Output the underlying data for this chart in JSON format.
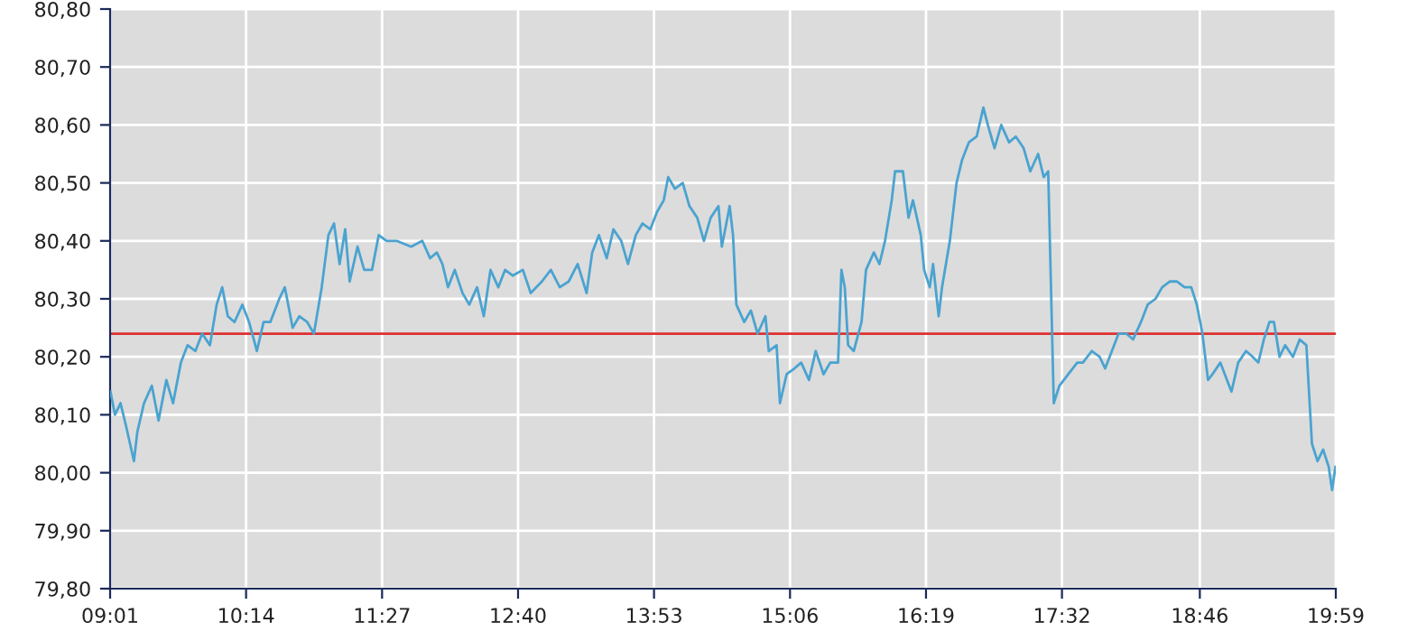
{
  "chart_data": {
    "type": "line",
    "x": [
      9.02,
      9.06,
      9.11,
      9.16,
      9.23,
      9.26,
      9.32,
      9.39,
      9.45,
      9.52,
      9.58,
      9.65,
      9.71,
      9.78,
      9.84,
      9.91,
      9.97,
      10.02,
      10.07,
      10.13,
      10.2,
      10.26,
      10.33,
      10.39,
      10.45,
      10.53,
      10.58,
      10.65,
      10.71,
      10.78,
      10.84,
      10.91,
      10.97,
      11.02,
      11.07,
      11.12,
      11.16,
      11.23,
      11.29,
      11.36,
      11.42,
      11.49,
      11.58,
      11.71,
      11.81,
      11.88,
      11.94,
      11.99,
      12.04,
      12.1,
      12.17,
      12.23,
      12.3,
      12.36,
      12.42,
      12.49,
      12.55,
      12.62,
      12.71,
      12.78,
      12.88,
      12.96,
      13.04,
      13.12,
      13.2,
      13.28,
      13.33,
      13.39,
      13.46,
      13.52,
      13.59,
      13.65,
      13.72,
      13.78,
      13.85,
      13.91,
      13.97,
      14.01,
      14.07,
      14.14,
      14.2,
      14.27,
      14.33,
      14.39,
      14.46,
      14.49,
      14.56,
      14.59,
      14.62,
      14.69,
      14.75,
      14.81,
      14.88,
      14.91,
      14.98,
      15.01,
      15.07,
      15.14,
      15.2,
      15.27,
      15.33,
      15.4,
      15.46,
      15.53,
      15.56,
      15.59,
      15.62,
      15.67,
      15.74,
      15.78,
      15.85,
      15.9,
      15.95,
      16.01,
      16.04,
      16.11,
      16.16,
      16.2,
      16.27,
      16.3,
      16.35,
      16.38,
      16.43,
      16.46,
      16.53,
      16.59,
      16.64,
      16.7,
      16.77,
      16.83,
      16.87,
      16.9,
      16.93,
      16.99,
      17.06,
      17.12,
      17.19,
      17.25,
      17.32,
      17.37,
      17.41,
      17.46,
      17.51,
      17.59,
      17.67,
      17.72,
      17.8,
      17.87,
      17.92,
      17.98,
      18.04,
      18.11,
      18.17,
      18.24,
      18.3,
      18.37,
      18.43,
      18.5,
      18.56,
      18.63,
      18.69,
      18.74,
      18.79,
      18.84,
      18.88,
      18.95,
      19.01,
      19.05,
      19.11,
      19.18,
      19.24,
      19.29,
      19.34,
      19.39,
      19.43,
      19.48,
      19.53,
      19.6,
      19.66,
      19.72,
      19.77,
      19.82,
      19.87,
      19.92,
      19.95,
      19.98
    ],
    "series": [
      {
        "color": "#4aa3d0",
        "values": [
          80.14,
          80.1,
          80.12,
          80.08,
          80.02,
          80.07,
          80.12,
          80.15,
          80.09,
          80.16,
          80.12,
          80.19,
          80.22,
          80.21,
          80.24,
          80.22,
          80.29,
          80.32,
          80.27,
          80.26,
          80.29,
          80.26,
          80.21,
          80.26,
          80.26,
          80.3,
          80.32,
          80.25,
          80.27,
          80.26,
          80.24,
          80.32,
          80.41,
          80.43,
          80.36,
          80.42,
          80.33,
          80.39,
          80.35,
          80.35,
          80.41,
          80.4,
          80.4,
          80.39,
          80.4,
          80.37,
          80.38,
          80.36,
          80.32,
          80.35,
          80.31,
          80.29,
          80.32,
          80.27,
          80.35,
          80.32,
          80.35,
          80.34,
          80.35,
          80.31,
          80.33,
          80.35,
          80.32,
          80.33,
          80.36,
          80.31,
          80.38,
          80.41,
          80.37,
          80.42,
          80.4,
          80.36,
          80.41,
          80.43,
          80.42,
          80.45,
          80.47,
          80.51,
          80.49,
          80.5,
          80.46,
          80.44,
          80.4,
          80.44,
          80.46,
          80.39,
          80.46,
          80.41,
          80.29,
          80.26,
          80.28,
          80.24,
          80.27,
          80.21,
          80.22,
          80.12,
          80.17,
          80.18,
          80.19,
          80.16,
          80.21,
          80.17,
          80.19,
          80.19,
          80.35,
          80.32,
          80.22,
          80.21,
          80.26,
          80.35,
          80.38,
          80.36,
          80.4,
          80.47,
          80.52,
          80.52,
          80.44,
          80.47,
          80.41,
          80.35,
          80.32,
          80.36,
          80.27,
          80.32,
          80.4,
          80.5,
          80.54,
          80.57,
          80.58,
          80.63,
          80.6,
          80.58,
          80.56,
          80.6,
          80.57,
          80.58,
          80.56,
          80.52,
          80.55,
          80.51,
          80.52,
          80.12,
          80.15,
          80.17,
          80.19,
          80.19,
          80.21,
          80.2,
          80.18,
          80.21,
          80.24,
          80.24,
          80.23,
          80.26,
          80.29,
          80.3,
          80.32,
          80.33,
          80.33,
          80.32,
          80.32,
          80.29,
          80.24,
          80.16,
          80.17,
          80.19,
          80.16,
          80.14,
          80.19,
          80.21,
          80.2,
          80.19,
          80.23,
          80.26,
          80.26,
          80.2,
          80.22,
          80.2,
          80.23,
          80.22,
          80.05,
          80.02,
          80.04,
          80.01,
          79.97,
          80.01
        ]
      }
    ],
    "xlim": [
      9.0167,
      19.9833
    ],
    "xticks": [
      {
        "value": 9.0167,
        "label": "09:01"
      },
      {
        "value": 10.2333,
        "label": "10:14"
      },
      {
        "value": 11.45,
        "label": "11:27"
      },
      {
        "value": 12.6667,
        "label": "12:40"
      },
      {
        "value": 13.8833,
        "label": "13:53"
      },
      {
        "value": 15.1,
        "label": "15:06"
      },
      {
        "value": 16.3167,
        "label": "16:19"
      },
      {
        "value": 17.5333,
        "label": "17:32"
      },
      {
        "value": 18.7667,
        "label": "18:46"
      },
      {
        "value": 19.9833,
        "label": "19:59"
      }
    ],
    "ylim": [
      79.8,
      80.8
    ],
    "yticks": [
      {
        "value": 79.8,
        "label": "79,80"
      },
      {
        "value": 79.9,
        "label": "79,90"
      },
      {
        "value": 80.0,
        "label": "80,00"
      },
      {
        "value": 80.1,
        "label": "80,10"
      },
      {
        "value": 80.2,
        "label": "80,20"
      },
      {
        "value": 80.3,
        "label": "80,30"
      },
      {
        "value": 80.4,
        "label": "80,40"
      },
      {
        "value": 80.5,
        "label": "80,50"
      },
      {
        "value": 80.6,
        "label": "80,60"
      },
      {
        "value": 80.7,
        "label": "80,70"
      },
      {
        "value": 80.8,
        "label": "80,80"
      }
    ],
    "ref_lines": [
      {
        "axis": "y",
        "value": 80.24,
        "color": "#e03030"
      }
    ],
    "grid": true
  }
}
